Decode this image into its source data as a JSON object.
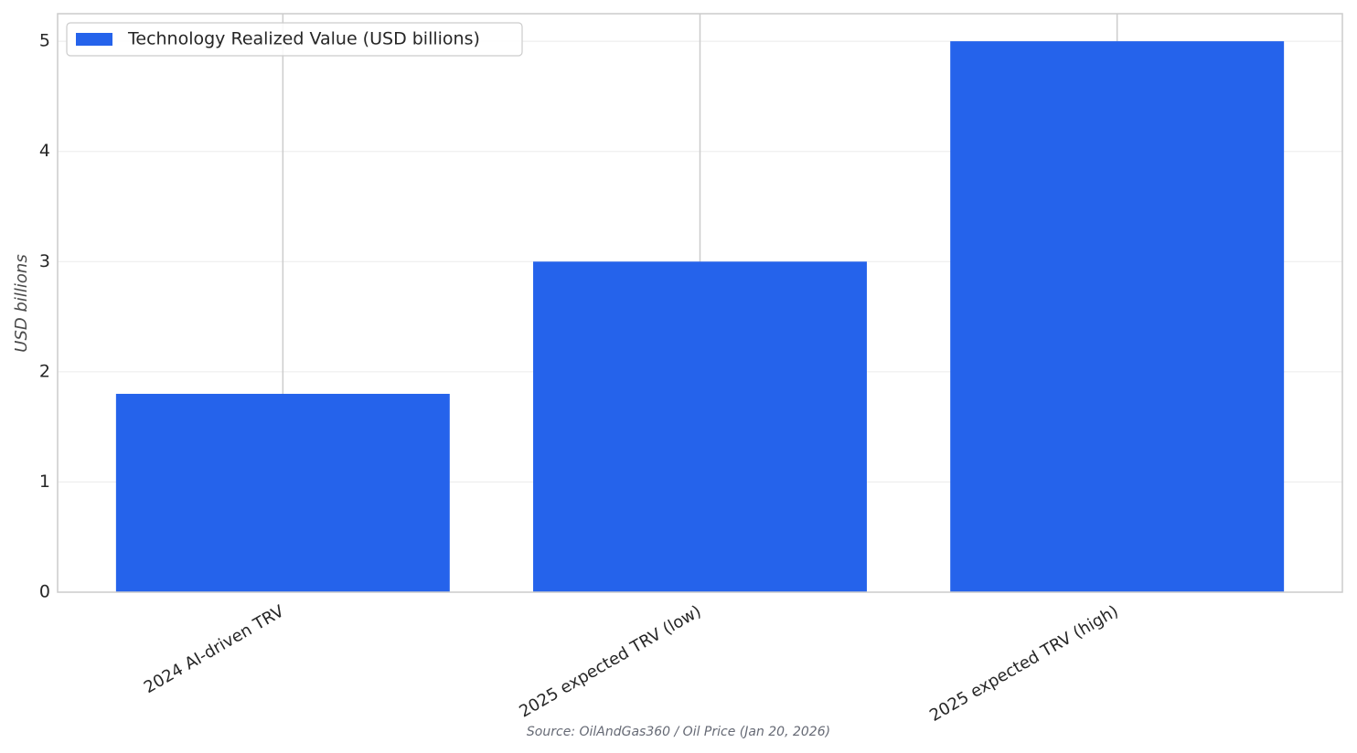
{
  "chart_data": {
    "type": "bar",
    "y_label": "USD billions",
    "source": "Source: OilAndGas360 / Oil Price (Jan 20, 2026)",
    "categories": [
      "2024 AI-driven TRV",
      "2025 expected TRV (low)",
      "2025 expected TRV (high)"
    ],
    "series": [
      {
        "name": "Technology Realized Value (USD billions)",
        "color": "#2563eb",
        "values": [
          1.8,
          3.0,
          5.0
        ]
      }
    ],
    "ylim": [
      0,
      5.25
    ],
    "yticks": [
      0,
      1,
      2,
      3,
      4,
      5
    ],
    "grid": true,
    "legend": "upper left"
  }
}
